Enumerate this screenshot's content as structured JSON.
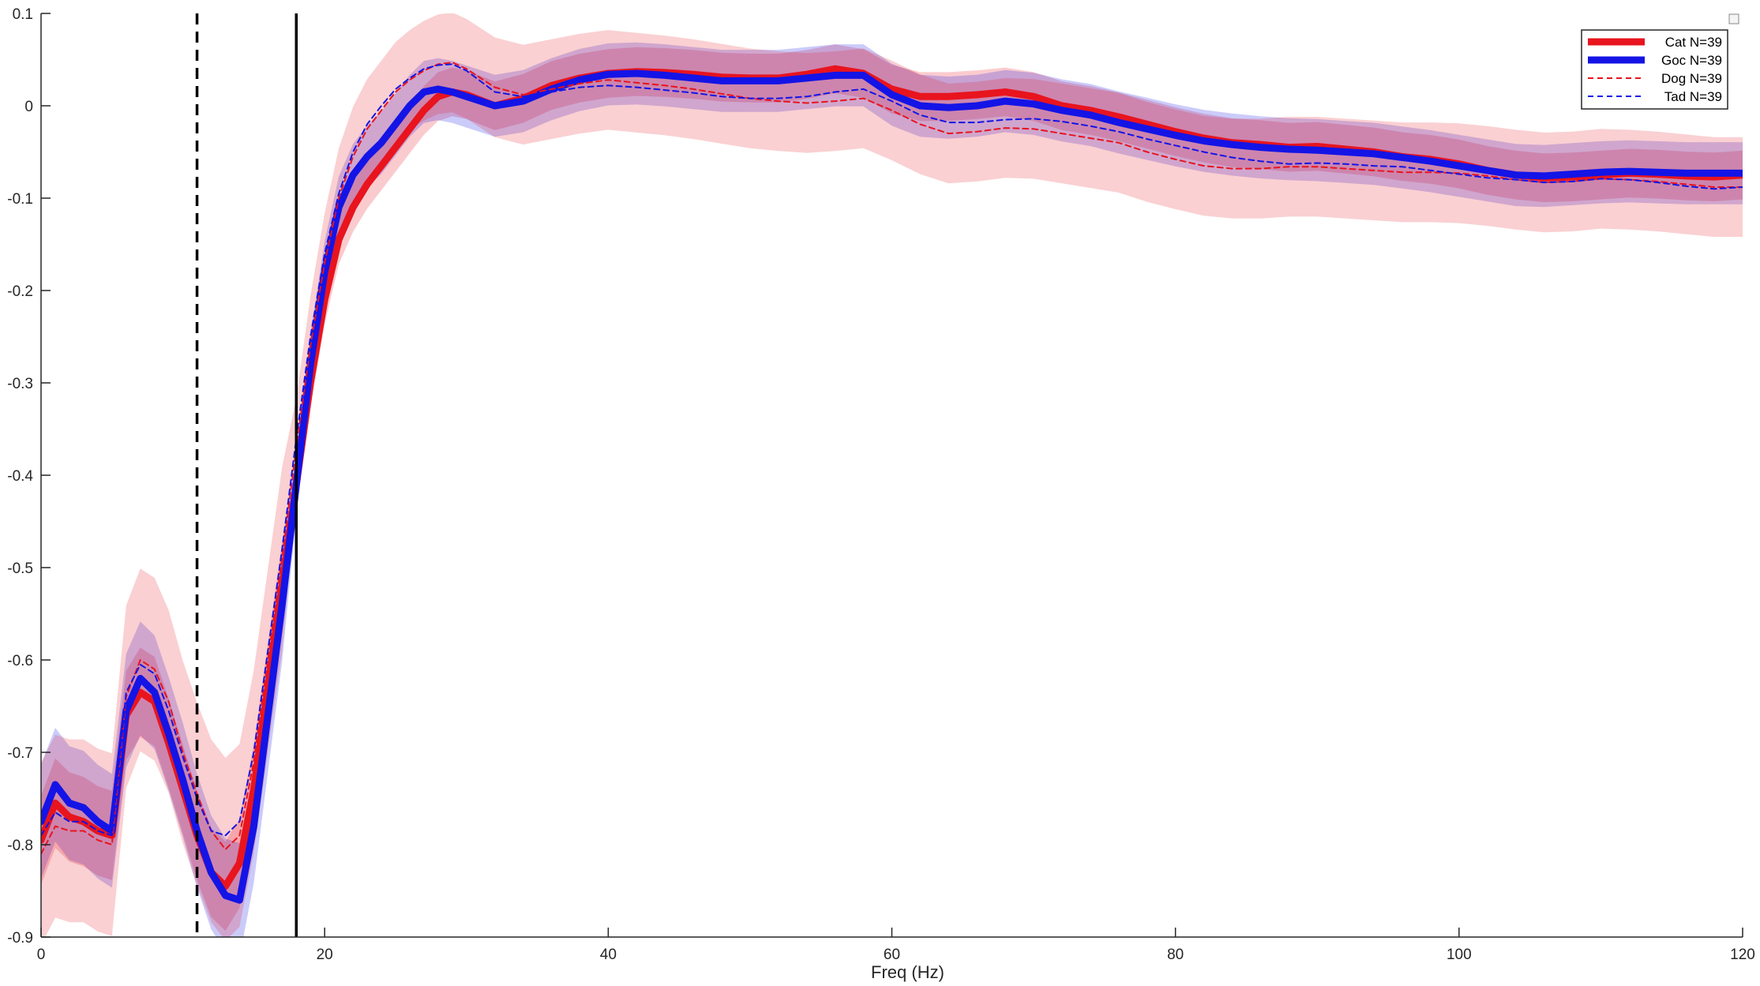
{
  "chart_data": {
    "type": "line",
    "xlabel": "Freq (Hz)",
    "ylabel": "",
    "xlim": [
      0,
      120
    ],
    "ylim": [
      -0.9,
      0.1
    ],
    "xticks": [
      0,
      20,
      40,
      60,
      80,
      100,
      120
    ],
    "xtick_labels": [
      "0",
      "20",
      "40",
      "60",
      "80",
      "100",
      "120"
    ],
    "yticks": [
      0.1,
      0,
      -0.1,
      -0.2,
      -0.3,
      -0.4,
      -0.5,
      -0.6,
      -0.7,
      -0.8,
      -0.9
    ],
    "ytick_labels": [
      "0.1",
      "0",
      "-0.1",
      "-0.2",
      "-0.3",
      "-0.4",
      "-0.5",
      "-0.6",
      "-0.7",
      "-0.8",
      "-0.9"
    ],
    "grid": false,
    "legend_position": "top-right",
    "vertical_lines": [
      {
        "x": 11,
        "style": "dashed",
        "color": "#000000"
      },
      {
        "x": 18,
        "style": "solid",
        "color": "#000000"
      }
    ],
    "series": [
      {
        "name": "Cat N=39",
        "color": "#e8141e",
        "line_style": "solid-thick",
        "band": 0.022,
        "x": [
          0,
          1,
          2,
          3,
          4,
          5,
          6,
          7,
          8,
          9,
          10,
          11,
          12,
          13,
          14,
          15,
          16,
          17,
          18,
          19,
          20,
          21,
          22,
          23,
          24,
          25,
          26,
          27,
          28,
          29,
          30,
          32,
          34,
          36,
          38,
          40,
          42,
          44,
          46,
          48,
          50,
          52,
          54,
          56,
          58,
          60,
          62,
          64,
          66,
          68,
          70,
          72,
          74,
          76,
          78,
          80,
          82,
          84,
          86,
          88,
          90,
          92,
          94,
          96,
          98,
          100,
          102,
          104,
          106,
          108,
          110,
          112,
          114,
          116,
          118,
          120
        ],
        "y": [
          -0.795,
          -0.755,
          -0.77,
          -0.775,
          -0.785,
          -0.79,
          -0.66,
          -0.635,
          -0.645,
          -0.69,
          -0.74,
          -0.79,
          -0.83,
          -0.845,
          -0.82,
          -0.74,
          -0.63,
          -0.52,
          -0.41,
          -0.3,
          -0.21,
          -0.145,
          -0.11,
          -0.085,
          -0.065,
          -0.045,
          -0.025,
          -0.005,
          0.01,
          0.015,
          0.012,
          0.0,
          0.008,
          0.022,
          0.03,
          0.035,
          0.037,
          0.036,
          0.034,
          0.031,
          0.03,
          0.03,
          0.034,
          0.04,
          0.035,
          0.018,
          0.01,
          0.01,
          0.012,
          0.015,
          0.01,
          0.0,
          -0.005,
          -0.012,
          -0.02,
          -0.028,
          -0.035,
          -0.04,
          -0.042,
          -0.045,
          -0.044,
          -0.047,
          -0.05,
          -0.055,
          -0.058,
          -0.063,
          -0.07,
          -0.075,
          -0.078,
          -0.077,
          -0.075,
          -0.073,
          -0.074,
          -0.076,
          -0.077,
          -0.075
        ]
      },
      {
        "name": "Goc N=39",
        "color": "#1414e6",
        "line_style": "solid-thick",
        "band": 0.028,
        "x": [
          0,
          1,
          2,
          3,
          4,
          5,
          6,
          7,
          8,
          9,
          10,
          11,
          12,
          13,
          14,
          15,
          16,
          17,
          18,
          19,
          20,
          21,
          22,
          23,
          24,
          25,
          26,
          27,
          28,
          29,
          30,
          32,
          34,
          36,
          38,
          40,
          42,
          44,
          46,
          48,
          50,
          52,
          54,
          56,
          58,
          60,
          62,
          64,
          66,
          68,
          70,
          72,
          74,
          76,
          78,
          80,
          82,
          84,
          86,
          88,
          90,
          92,
          94,
          96,
          98,
          100,
          102,
          104,
          106,
          108,
          110,
          112,
          114,
          116,
          118,
          120
        ],
        "y": [
          -0.775,
          -0.735,
          -0.755,
          -0.76,
          -0.775,
          -0.785,
          -0.655,
          -0.62,
          -0.635,
          -0.68,
          -0.73,
          -0.785,
          -0.83,
          -0.855,
          -0.86,
          -0.78,
          -0.66,
          -0.54,
          -0.41,
          -0.28,
          -0.18,
          -0.11,
          -0.075,
          -0.055,
          -0.04,
          -0.02,
          0.0,
          0.015,
          0.018,
          0.015,
          0.01,
          0.0,
          0.005,
          0.018,
          0.028,
          0.034,
          0.035,
          0.033,
          0.03,
          0.027,
          0.027,
          0.027,
          0.03,
          0.033,
          0.033,
          0.012,
          0.0,
          -0.002,
          0.0,
          0.005,
          0.002,
          -0.005,
          -0.01,
          -0.018,
          -0.025,
          -0.032,
          -0.038,
          -0.042,
          -0.045,
          -0.047,
          -0.048,
          -0.05,
          -0.052,
          -0.056,
          -0.06,
          -0.065,
          -0.07,
          -0.075,
          -0.076,
          -0.074,
          -0.072,
          -0.071,
          -0.072,
          -0.073,
          -0.073,
          -0.073
        ]
      },
      {
        "name": "Dog N=39",
        "color": "#e8141e",
        "line_style": "dashed",
        "band": 0.045,
        "x": [
          0,
          1,
          2,
          3,
          4,
          5,
          6,
          7,
          8,
          9,
          10,
          11,
          12,
          13,
          14,
          15,
          16,
          17,
          18,
          19,
          20,
          21,
          22,
          23,
          24,
          25,
          26,
          27,
          28,
          29,
          30,
          32,
          34,
          36,
          38,
          40,
          42,
          44,
          46,
          48,
          50,
          52,
          54,
          56,
          58,
          60,
          62,
          64,
          66,
          68,
          70,
          72,
          74,
          76,
          78,
          80,
          82,
          84,
          86,
          88,
          90,
          92,
          94,
          96,
          98,
          100,
          102,
          104,
          106,
          108,
          110,
          112,
          114,
          116,
          118,
          120
        ],
        "y": [
          -0.81,
          -0.78,
          -0.785,
          -0.785,
          -0.795,
          -0.8,
          -0.64,
          -0.6,
          -0.61,
          -0.645,
          -0.7,
          -0.745,
          -0.785,
          -0.805,
          -0.79,
          -0.71,
          -0.6,
          -0.49,
          -0.37,
          -0.26,
          -0.17,
          -0.1,
          -0.055,
          -0.025,
          -0.005,
          0.015,
          0.028,
          0.038,
          0.045,
          0.047,
          0.04,
          0.02,
          0.012,
          0.018,
          0.024,
          0.028,
          0.025,
          0.022,
          0.018,
          0.013,
          0.008,
          0.005,
          0.003,
          0.005,
          0.008,
          -0.005,
          -0.02,
          -0.03,
          -0.028,
          -0.024,
          -0.025,
          -0.03,
          -0.035,
          -0.04,
          -0.05,
          -0.058,
          -0.065,
          -0.068,
          -0.068,
          -0.066,
          -0.066,
          -0.068,
          -0.07,
          -0.072,
          -0.072,
          -0.073,
          -0.076,
          -0.08,
          -0.083,
          -0.082,
          -0.079,
          -0.08,
          -0.082,
          -0.085,
          -0.088,
          -0.088
        ]
      },
      {
        "name": "Tad N=39",
        "color": "#1414e6",
        "line_style": "dashed",
        "band": 0.0,
        "x": [
          0,
          1,
          2,
          3,
          4,
          5,
          6,
          7,
          8,
          9,
          10,
          11,
          12,
          13,
          14,
          15,
          16,
          17,
          18,
          19,
          20,
          21,
          22,
          23,
          24,
          25,
          26,
          27,
          28,
          29,
          30,
          32,
          34,
          36,
          38,
          40,
          42,
          44,
          46,
          48,
          50,
          52,
          54,
          56,
          58,
          60,
          62,
          64,
          66,
          68,
          70,
          72,
          74,
          76,
          78,
          80,
          82,
          84,
          86,
          88,
          90,
          92,
          94,
          96,
          98,
          100,
          102,
          104,
          106,
          108,
          110,
          112,
          114,
          116,
          118,
          120
        ],
        "y": [
          -0.79,
          -0.765,
          -0.775,
          -0.775,
          -0.785,
          -0.79,
          -0.635,
          -0.605,
          -0.615,
          -0.655,
          -0.705,
          -0.75,
          -0.785,
          -0.79,
          -0.775,
          -0.7,
          -0.59,
          -0.48,
          -0.36,
          -0.25,
          -0.16,
          -0.095,
          -0.05,
          -0.02,
          0.0,
          0.018,
          0.03,
          0.04,
          0.044,
          0.045,
          0.038,
          0.015,
          0.01,
          0.015,
          0.02,
          0.022,
          0.02,
          0.017,
          0.014,
          0.01,
          0.008,
          0.008,
          0.01,
          0.015,
          0.018,
          0.005,
          -0.01,
          -0.018,
          -0.018,
          -0.015,
          -0.014,
          -0.017,
          -0.022,
          -0.028,
          -0.036,
          -0.043,
          -0.05,
          -0.056,
          -0.06,
          -0.063,
          -0.062,
          -0.063,
          -0.065,
          -0.066,
          -0.07,
          -0.074,
          -0.078,
          -0.08,
          -0.083,
          -0.082,
          -0.079,
          -0.08,
          -0.083,
          -0.087,
          -0.09,
          -0.088
        ]
      }
    ]
  }
}
